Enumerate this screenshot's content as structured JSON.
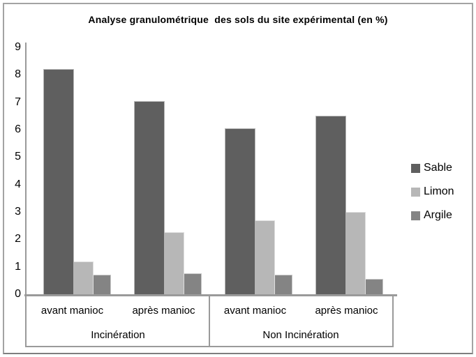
{
  "title": "Analyse granulométrique  des sols du site expérimental (en %)",
  "chart_data": {
    "type": "bar",
    "title": "Analyse granulométrique  des sols du site expérimental (en %)",
    "group_labels": [
      "Incinération",
      "Non Incinération"
    ],
    "sub_categories": [
      "avant manioc",
      "après manioc",
      "avant manioc",
      "après manioc"
    ],
    "categories": [
      "Incinération / avant manioc",
      "Incinération / après manioc",
      "Non Incinération / avant manioc",
      "Non Incinération / après manioc"
    ],
    "series": [
      {
        "name": "Sable",
        "color": "#5f5f5f",
        "values": [
          8.2,
          7.05,
          6.05,
          6.5
        ]
      },
      {
        "name": "Limon",
        "color": "#b7b7b7",
        "values": [
          1.2,
          2.25,
          2.7,
          3.0
        ]
      },
      {
        "name": "Argile",
        "color": "#848484",
        "values": [
          0.7,
          0.75,
          0.7,
          0.55
        ]
      }
    ],
    "xlabel": "",
    "ylabel": "",
    "ylim": [
      0,
      9
    ],
    "yticks": [
      0,
      1,
      2,
      3,
      4,
      5,
      6,
      7,
      8,
      9
    ],
    "gridlines": false,
    "legend_position": "right"
  },
  "colors": {
    "axis": "#9a9a9a",
    "frame": "#a3a3a3",
    "background": "#ffffff",
    "text": "#000000"
  }
}
